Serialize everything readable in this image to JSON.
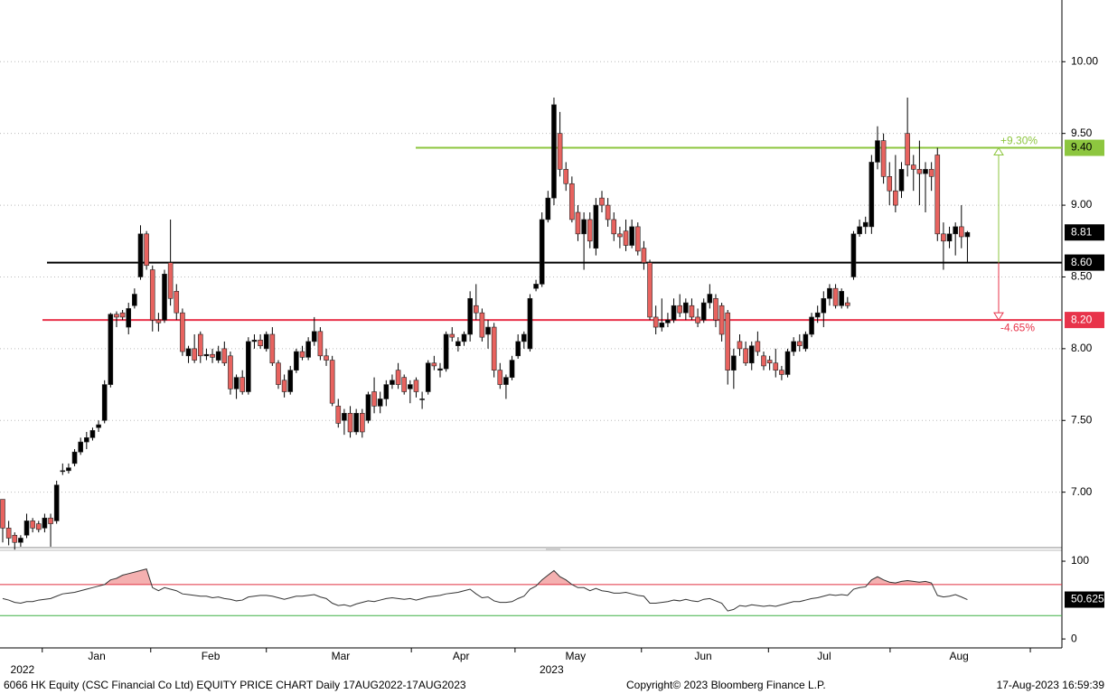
{
  "chart_data": [
    {
      "type": "candlestick",
      "ylim": [
        6.62,
        10.43
      ],
      "yticks": [
        {
          "value": 7,
          "label": "7.00"
        },
        {
          "value": 7.5,
          "label": "7.50"
        },
        {
          "value": 8,
          "label": "8.00"
        },
        {
          "value": 8.5,
          "label": "8.50"
        },
        {
          "value": 9,
          "label": "9.00"
        },
        {
          "value": 9.5,
          "label": "9.50"
        },
        {
          "value": 10,
          "label": "10.00"
        }
      ],
      "grid": true,
      "up_color": "#000000",
      "down_color": "#e8635f",
      "levels": [
        {
          "value": 9.4,
          "label": "9.40",
          "color": "#8dc63f",
          "change": "+9.30%"
        },
        {
          "value": 8.6,
          "label": "8.60",
          "color": "#000000"
        },
        {
          "value": 8.2,
          "label": "8.20",
          "color": "#e8334a",
          "change": "-4.65%"
        }
      ],
      "ohlc": [
        [
          6.95,
          6.95,
          6.65,
          6.75
        ],
        [
          6.75,
          6.8,
          6.63,
          6.68
        ],
        [
          6.7,
          6.72,
          6.6,
          6.65
        ],
        [
          6.65,
          6.7,
          6.62,
          6.68
        ],
        [
          6.7,
          6.85,
          6.68,
          6.8
        ],
        [
          6.8,
          6.82,
          6.72,
          6.75
        ],
        [
          6.78,
          6.8,
          6.72,
          6.74
        ],
        [
          6.75,
          6.85,
          6.72,
          6.82
        ],
        [
          6.82,
          6.85,
          6.62,
          6.78
        ],
        [
          6.8,
          7.08,
          6.78,
          7.05
        ],
        [
          7.15,
          7.2,
          7.12,
          7.15
        ],
        [
          7.15,
          7.2,
          7.13,
          7.17
        ],
        [
          7.2,
          7.3,
          7.18,
          7.28
        ],
        [
          7.28,
          7.38,
          7.26,
          7.35
        ],
        [
          7.35,
          7.42,
          7.3,
          7.38
        ],
        [
          7.38,
          7.45,
          7.36,
          7.43
        ],
        [
          7.45,
          7.5,
          7.42,
          7.47
        ],
        [
          7.5,
          7.78,
          7.48,
          7.75
        ],
        [
          7.75,
          8.25,
          7.73,
          8.24
        ],
        [
          8.24,
          8.26,
          8.15,
          8.22
        ],
        [
          8.25,
          8.27,
          8.2,
          8.22
        ],
        [
          8.15,
          8.32,
          8.1,
          8.28
        ],
        [
          8.3,
          8.42,
          8.28,
          8.38
        ],
        [
          8.5,
          8.86,
          8.48,
          8.8
        ],
        [
          8.8,
          8.82,
          8.55,
          8.58
        ],
        [
          8.55,
          8.58,
          8.12,
          8.2
        ],
        [
          8.2,
          8.25,
          8.12,
          8.18
        ],
        [
          8.2,
          8.55,
          8.18,
          8.52
        ],
        [
          8.6,
          8.9,
          8.3,
          8.35
        ],
        [
          8.4,
          8.45,
          8.2,
          8.25
        ],
        [
          8.25,
          8.28,
          7.95,
          7.98
        ],
        [
          7.95,
          8.02,
          7.9,
          8.0
        ],
        [
          8.0,
          8.1,
          7.9,
          7.92
        ],
        [
          8.1,
          8.12,
          7.9,
          7.95
        ],
        [
          7.95,
          8.0,
          7.92,
          7.96
        ],
        [
          7.96,
          8.0,
          7.9,
          7.94
        ],
        [
          7.92,
          8.02,
          7.9,
          7.98
        ],
        [
          8.0,
          8.05,
          7.88,
          7.9
        ],
        [
          7.95,
          7.98,
          7.68,
          7.72
        ],
        [
          7.72,
          7.82,
          7.65,
          7.8
        ],
        [
          7.8,
          7.85,
          7.68,
          7.7
        ],
        [
          7.7,
          8.08,
          7.68,
          8.05
        ],
        [
          8.05,
          8.1,
          8.0,
          8.06
        ],
        [
          8.06,
          8.1,
          8.0,
          8.02
        ],
        [
          8.0,
          8.12,
          7.98,
          8.1
        ],
        [
          8.1,
          8.15,
          7.88,
          7.9
        ],
        [
          7.9,
          7.92,
          7.72,
          7.75
        ],
        [
          7.78,
          7.82,
          7.66,
          7.7
        ],
        [
          7.7,
          7.88,
          7.68,
          7.85
        ],
        [
          7.85,
          8.0,
          7.83,
          7.98
        ],
        [
          7.98,
          8.02,
          7.92,
          7.94
        ],
        [
          7.94,
          8.08,
          7.92,
          8.05
        ],
        [
          8.05,
          8.22,
          8.02,
          8.12
        ],
        [
          8.12,
          8.15,
          7.92,
          7.95
        ],
        [
          7.95,
          8.0,
          7.88,
          7.92
        ],
        [
          7.92,
          7.95,
          7.6,
          7.62
        ],
        [
          7.6,
          7.65,
          7.45,
          7.48
        ],
        [
          7.5,
          7.58,
          7.4,
          7.55
        ],
        [
          7.55,
          7.6,
          7.38,
          7.42
        ],
        [
          7.42,
          7.58,
          7.4,
          7.55
        ],
        [
          7.55,
          7.58,
          7.38,
          7.42
        ],
        [
          7.5,
          7.7,
          7.48,
          7.68
        ],
        [
          7.7,
          7.8,
          7.55,
          7.6
        ],
        [
          7.6,
          7.7,
          7.55,
          7.65
        ],
        [
          7.65,
          7.78,
          7.6,
          7.75
        ],
        [
          7.75,
          7.82,
          7.72,
          7.78
        ],
        [
          7.85,
          7.9,
          7.72,
          7.75
        ],
        [
          7.8,
          7.82,
          7.68,
          7.7
        ],
        [
          7.72,
          7.78,
          7.62,
          7.75
        ],
        [
          7.78,
          7.8,
          7.66,
          7.7
        ],
        [
          7.65,
          7.7,
          7.58,
          7.65
        ],
        [
          7.7,
          7.92,
          7.68,
          7.9
        ],
        [
          7.9,
          7.95,
          7.85,
          7.88
        ],
        [
          7.85,
          7.9,
          7.8,
          7.86
        ],
        [
          7.86,
          8.12,
          7.84,
          8.1
        ],
        [
          8.1,
          8.15,
          8.05,
          8.08
        ],
        [
          8.02,
          8.08,
          7.98,
          8.05
        ],
        [
          8.05,
          8.12,
          8.02,
          8.1
        ],
        [
          8.1,
          8.4,
          8.05,
          8.35
        ],
        [
          8.3,
          8.45,
          8.2,
          8.25
        ],
        [
          8.25,
          8.28,
          8.05,
          8.08
        ],
        [
          8.1,
          8.2,
          8.0,
          8.15
        ],
        [
          8.15,
          8.18,
          7.8,
          7.85
        ],
        [
          7.85,
          7.9,
          7.72,
          7.75
        ],
        [
          7.75,
          7.82,
          7.65,
          7.8
        ],
        [
          7.8,
          7.95,
          7.78,
          7.92
        ],
        [
          7.95,
          8.1,
          7.93,
          8.05
        ],
        [
          8.05,
          8.12,
          8.0,
          8.1
        ],
        [
          8.0,
          8.38,
          7.98,
          8.35
        ],
        [
          8.42,
          8.48,
          8.4,
          8.45
        ],
        [
          8.45,
          8.95,
          8.43,
          8.9
        ],
        [
          8.9,
          9.1,
          8.88,
          9.05
        ],
        [
          9.05,
          9.75,
          9.0,
          9.7
        ],
        [
          9.5,
          9.65,
          9.2,
          9.25
        ],
        [
          9.25,
          9.3,
          9.1,
          9.15
        ],
        [
          9.15,
          9.2,
          8.88,
          8.9
        ],
        [
          8.95,
          9.0,
          8.75,
          8.8
        ],
        [
          8.8,
          8.95,
          8.55,
          8.9
        ],
        [
          8.9,
          8.95,
          8.7,
          8.75
        ],
        [
          8.7,
          9.05,
          8.65,
          9.0
        ],
        [
          9.05,
          9.1,
          8.95,
          9.0
        ],
        [
          9.0,
          9.05,
          8.85,
          8.9
        ],
        [
          8.9,
          8.95,
          8.75,
          8.8
        ],
        [
          8.8,
          8.85,
          8.7,
          8.78
        ],
        [
          8.82,
          8.9,
          8.68,
          8.72
        ],
        [
          8.72,
          8.9,
          8.7,
          8.85
        ],
        [
          8.85,
          8.88,
          8.65,
          8.68
        ],
        [
          8.7,
          8.75,
          8.55,
          8.6
        ],
        [
          8.6,
          8.62,
          8.2,
          8.22
        ],
        [
          8.22,
          8.3,
          8.1,
          8.15
        ],
        [
          8.15,
          8.35,
          8.12,
          8.18
        ],
        [
          8.18,
          8.25,
          8.15,
          8.2
        ],
        [
          8.2,
          8.35,
          8.18,
          8.3
        ],
        [
          8.3,
          8.38,
          8.22,
          8.25
        ],
        [
          8.25,
          8.35,
          8.2,
          8.32
        ],
        [
          8.3,
          8.35,
          8.2,
          8.22
        ],
        [
          8.22,
          8.28,
          8.15,
          8.18
        ],
        [
          8.2,
          8.35,
          8.18,
          8.32
        ],
        [
          8.32,
          8.45,
          8.28,
          8.38
        ],
        [
          8.35,
          8.38,
          8.15,
          8.2
        ],
        [
          8.3,
          8.32,
          8.05,
          8.1
        ],
        [
          8.25,
          8.27,
          7.75,
          7.85
        ],
        [
          7.85,
          8.0,
          7.72,
          7.95
        ],
        [
          8.05,
          8.1,
          7.95,
          8.0
        ],
        [
          8.0,
          8.05,
          7.88,
          7.9
        ],
        [
          7.9,
          8.05,
          7.85,
          8.02
        ],
        [
          8.05,
          8.12,
          7.95,
          7.98
        ],
        [
          7.95,
          7.98,
          7.85,
          7.88
        ],
        [
          7.92,
          7.95,
          7.85,
          7.9
        ],
        [
          7.9,
          8.0,
          7.8,
          7.85
        ],
        [
          7.85,
          7.88,
          7.78,
          7.82
        ],
        [
          7.82,
          8.0,
          7.8,
          7.98
        ],
        [
          7.98,
          8.08,
          7.95,
          8.05
        ],
        [
          8.05,
          8.1,
          7.98,
          8.02
        ],
        [
          8.0,
          8.12,
          7.98,
          8.1
        ],
        [
          8.1,
          8.25,
          8.08,
          8.22
        ],
        [
          8.22,
          8.3,
          8.18,
          8.25
        ],
        [
          8.25,
          8.4,
          8.15,
          8.35
        ],
        [
          8.35,
          8.45,
          8.3,
          8.42
        ],
        [
          8.42,
          8.45,
          8.28,
          8.3
        ],
        [
          8.3,
          8.42,
          8.28,
          8.4
        ],
        [
          8.32,
          8.36,
          8.28,
          8.3
        ],
        [
          8.5,
          8.82,
          8.48,
          8.8
        ],
        [
          8.8,
          8.9,
          8.78,
          8.85
        ],
        [
          8.85,
          8.92,
          8.8,
          8.88
        ],
        [
          8.85,
          9.35,
          8.8,
          9.3
        ],
        [
          9.3,
          9.55,
          9.25,
          9.45
        ],
        [
          9.45,
          9.5,
          9.15,
          9.2
        ],
        [
          9.2,
          9.3,
          9.0,
          9.1
        ],
        [
          9.1,
          9.35,
          8.95,
          9.0
        ],
        [
          9.1,
          9.3,
          9.05,
          9.25
        ],
        [
          9.5,
          9.75,
          9.2,
          9.28
        ],
        [
          9.28,
          9.35,
          9.1,
          9.25
        ],
        [
          9.25,
          9.45,
          9.0,
          9.22
        ],
        [
          9.22,
          9.3,
          8.95,
          9.25
        ],
        [
          9.25,
          9.3,
          9.1,
          9.2
        ],
        [
          9.35,
          9.4,
          8.75,
          8.8
        ],
        [
          8.8,
          8.88,
          8.55,
          8.75
        ],
        [
          8.75,
          8.85,
          8.7,
          8.8
        ],
        [
          8.8,
          8.88,
          8.65,
          8.85
        ],
        [
          8.85,
          9.0,
          8.7,
          8.78
        ],
        [
          8.78,
          8.82,
          8.6,
          8.81
        ]
      ]
    },
    {
      "type": "line",
      "color": "#333333",
      "ylim": [
        -11.5,
        110.5
      ],
      "yticks": [
        0,
        100
      ],
      "levels": [
        {
          "value": 70,
          "color": "#e03040"
        },
        {
          "value": 30,
          "color": "#3cb043"
        }
      ],
      "overbought_fill": "#f4b0b0",
      "values": [
        52,
        50,
        47,
        46,
        48,
        48,
        50,
        51,
        52,
        55,
        58,
        59,
        60,
        62,
        64,
        66,
        68,
        70,
        76,
        78,
        82,
        84,
        86,
        88,
        90,
        66,
        62,
        66,
        64,
        62,
        58,
        57,
        56,
        55,
        55,
        53,
        54,
        52,
        51,
        49,
        50,
        54,
        55,
        56,
        56,
        55,
        53,
        51,
        53,
        55,
        55,
        56,
        57,
        54,
        52,
        46,
        43,
        44,
        42,
        45,
        47,
        49,
        48,
        50,
        52,
        53,
        52,
        51,
        52,
        50,
        52,
        54,
        55,
        56,
        58,
        59,
        60,
        62,
        64,
        58,
        53,
        54,
        49,
        47,
        47,
        48,
        52,
        55,
        64,
        68,
        76,
        82,
        88,
        80,
        76,
        70,
        66,
        66,
        62,
        65,
        62,
        61,
        59,
        59,
        60,
        58,
        56,
        55,
        46,
        46,
        47,
        48,
        50,
        49,
        51,
        49,
        48,
        51,
        52,
        49,
        46,
        36,
        38,
        43,
        42,
        44,
        43,
        42,
        43,
        42,
        44,
        46,
        48,
        48,
        50,
        52,
        53,
        55,
        57,
        56,
        57,
        56,
        64,
        66,
        67,
        76,
        80,
        76,
        73,
        72,
        74,
        75,
        74,
        73,
        74,
        72,
        56,
        54,
        55,
        57,
        54,
        50.625
      ],
      "xticks": [
        {
          "value": 15.7,
          "label": "Jan"
        },
        {
          "value": 34.7,
          "label": "Feb"
        },
        {
          "value": 56.4,
          "label": "Mar"
        },
        {
          "value": 76.5,
          "label": "Apr"
        },
        {
          "value": 95.6,
          "label": "May"
        },
        {
          "value": 116.9,
          "label": "Jun"
        },
        {
          "value": 137.1,
          "label": "Jul"
        },
        {
          "value": 159.6,
          "label": "Aug"
        }
      ],
      "year_labels": [
        {
          "value": 3.3,
          "label": "2022"
        },
        {
          "value": 91.6,
          "label": "2023"
        }
      ],
      "xgrid": [
        6.6,
        24.7,
        44.0,
        68.2,
        85.5,
        106.6,
        127.8,
        148.1,
        171.5
      ]
    }
  ],
  "footer": {
    "description": "6066 HK Equity (CSC Financial Co Ltd) EQUITY PRICE CHART  Daily 17AUG2022-17AUG2023",
    "copyright": "Copyright© 2023 Bloomberg Finance L.P.",
    "timestamp": "17-Aug-2023 16:59:39"
  }
}
